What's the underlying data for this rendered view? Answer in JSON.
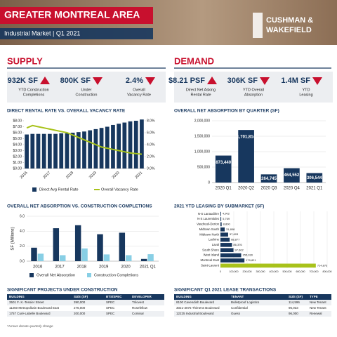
{
  "header": {
    "title": "GREATER MONTREAL AREA",
    "subtitle": "Industrial Market | Q1 2021",
    "logo": [
      "CUSHMAN &",
      "WAKEFIELD"
    ]
  },
  "supply": {
    "heading": "SUPPLY",
    "stats": [
      {
        "value": "932K SF",
        "label": [
          "YTD Construction",
          "Completions"
        ],
        "trend": "up"
      },
      {
        "value": "800K SF",
        "label": [
          "Under",
          "Construction"
        ],
        "trend": "down"
      },
      {
        "value": "2.4%",
        "label": [
          "Overall",
          "Vacancy Rate"
        ],
        "trend": "down"
      }
    ]
  },
  "demand": {
    "heading": "DEMAND",
    "stats": [
      {
        "value": "$8.21 PSF",
        "label": [
          "Direct Net Asking",
          "Rental Rate"
        ],
        "trend": "up"
      },
      {
        "value": "306K SF",
        "label": [
          "YTD Overall",
          "Absorption"
        ],
        "trend": "down"
      },
      {
        "value": "1.4M SF",
        "label": [
          "YTD",
          "Leasing"
        ],
        "trend": "down"
      }
    ]
  },
  "chart_data": [
    {
      "type": "combo",
      "title": "DIRECT RENTAL RATE VS. OVERALL VACANCY RATE",
      "categories": [
        "2016",
        null,
        null,
        null,
        "2017",
        null,
        null,
        null,
        "2018",
        null,
        null,
        null,
        "2019",
        null,
        null,
        null,
        "2020",
        null,
        null,
        null,
        "2021"
      ],
      "series": [
        {
          "name": "Direct Avg Rental Rate",
          "color": "#17375e",
          "type": "bar",
          "values": [
            5.7,
            5.8,
            5.8,
            5.8,
            5.8,
            5.8,
            5.9,
            5.9,
            6.0,
            6.1,
            6.2,
            6.4,
            6.6,
            6.8,
            7.0,
            7.3,
            7.5,
            7.7,
            7.9,
            8.0,
            8.21
          ]
        },
        {
          "name": "Overall Vacancy Rate",
          "color": "#a8c21a",
          "type": "line",
          "axis": "y2",
          "values": [
            6.8,
            7.2,
            7.0,
            6.8,
            6.6,
            6.4,
            6.2,
            6.0,
            5.6,
            5.2,
            4.8,
            4.4,
            4.0,
            3.6,
            3.4,
            3.2,
            3.0,
            2.8,
            2.6,
            2.5,
            2.4
          ]
        }
      ],
      "ylim": [
        0,
        8
      ],
      "yticks": [
        {
          "value": 0,
          "label": "$0.00"
        },
        {
          "value": 1,
          "label": "$1.00"
        },
        {
          "value": 2,
          "label": "$2.00"
        },
        {
          "value": 3,
          "label": "$3.00"
        },
        {
          "value": 4,
          "label": "$4.00"
        },
        {
          "value": 5,
          "label": "$5.00"
        },
        {
          "value": 6,
          "label": "$6.00"
        },
        {
          "value": 7,
          "label": "$7.00"
        },
        {
          "value": 8,
          "label": "$8.00"
        }
      ],
      "y2lim": [
        0,
        8
      ],
      "y2ticks": [
        {
          "value": 0,
          "label": "0.0%"
        },
        {
          "value": 2,
          "label": "2.0%"
        },
        {
          "value": 4,
          "label": "4.0%"
        },
        {
          "value": 6,
          "label": "6.0%"
        },
        {
          "value": 8,
          "label": "8.0%"
        }
      ]
    },
    {
      "type": "bar",
      "title": "OVERALL NET ABSORPTION BY QUARTER (SF)",
      "categories": [
        "2020 Q1",
        "2020 Q2",
        "2020 Q3",
        "2020 Q4",
        "2021 Q1"
      ],
      "values": [
        873440,
        1701814,
        264745,
        464552,
        306544
      ],
      "value_labels": [
        "873,440",
        "1,701,814",
        "264,745",
        "464,552",
        "306,544"
      ],
      "color": "#17375e",
      "grid": true,
      "ylim": [
        0,
        2000000
      ],
      "yticks": [
        0,
        {
          "value": 500000,
          "label": "500,000"
        },
        {
          "value": 1000000,
          "label": "1,000,000"
        },
        {
          "value": 1500000,
          "label": "1,500,000"
        },
        {
          "value": 2000000,
          "label": "2,000,000"
        }
      ]
    },
    {
      "type": "bar",
      "title": "OVERALL NET ABSORPTION VS. CONSTRUCTION COMPLETIONS",
      "ylabel": "SF (Millions)",
      "categories": [
        "2016",
        "2017",
        "2018",
        "2019",
        "2020",
        "2021 Q1"
      ],
      "series": [
        {
          "name": "Overall Net Absorption",
          "color": "#17375e",
          "values": [
            1.8,
            4.4,
            4.8,
            3.6,
            3.8,
            0.3
          ]
        },
        {
          "name": "Construction Completions",
          "color": "#88cfe5",
          "values": [
            1.0,
            0.8,
            1.7,
            0.9,
            0.8,
            0.93
          ]
        }
      ],
      "ylim": [
        0,
        6
      ],
      "yticks": [
        {
          "value": 0,
          "label": "0.0"
        },
        {
          "value": 2,
          "label": "2.0"
        },
        {
          "value": 4,
          "label": "4.0"
        },
        {
          "value": 6,
          "label": "6.0"
        }
      ],
      "grid": true
    },
    {
      "type": "barh",
      "title": "2021 YTD LEASING BY SUBMARKET (SF)",
      "categories": [
        "N-S Lanaudière",
        "N-S Laurentides",
        "Vaudreuil-Dorion",
        "Midtown South",
        "Midtown North",
        "Lachine",
        "Laval",
        "South Shore",
        "West Island",
        "Montreal East",
        "Saint-Laurent"
      ],
      "values": [
        4902,
        5769,
        8800,
        31808,
        57603,
        68877,
        86376,
        97602,
        155330,
        179821,
        714873
      ],
      "value_labels": [
        "4,902",
        "5,769",
        "8,800",
        "31,808",
        "57,603",
        "68,877",
        "86,376",
        "97,602",
        "155,330",
        "179,821",
        "714,873"
      ],
      "colors": [
        "#17375e",
        "#17375e",
        "#17375e",
        "#17375e",
        "#17375e",
        "#17375e",
        "#17375e",
        "#17375e",
        "#17375e",
        "#17375e",
        "#a8c21a"
      ],
      "xlim": [
        0,
        800000
      ],
      "xticks": [
        0,
        {
          "value": 100000,
          "label": "100,000"
        },
        {
          "value": 200000,
          "label": "200,000"
        },
        {
          "value": 300000,
          "label": "300,000"
        },
        {
          "value": 400000,
          "label": "400,000"
        },
        {
          "value": 500000,
          "label": "500,000"
        },
        {
          "value": 600000,
          "label": "600,000"
        },
        {
          "value": 700000,
          "label": "700,000"
        },
        {
          "value": 800000,
          "label": "800,000"
        }
      ],
      "grid": true
    }
  ],
  "projects": {
    "title": "SIGNIFICANT PROJECTS UNDER CONSTRUCTION",
    "columns": [
      "BUILDING",
      "SIZE (SF)",
      "BTS/SPEC",
      "DEVELOPER"
    ],
    "rows": [
      [
        "3501 F.-X.-Tessier Street",
        "390,000",
        "SPEC",
        "Trilovest"
      ],
      [
        "11250 Metropolitain Boulevard East",
        "276,000",
        "SPEC",
        "Rosefellow"
      ],
      [
        "1757 Curé-Labelle Boulevard",
        "200,000",
        "SPEC",
        "Cominar"
      ]
    ]
  },
  "leases": {
    "title": "SIGNIFICANT Q1 2021 LEASE TRANSACTIONS",
    "columns": [
      "BUILDING",
      "TENANT",
      "SIZE (SF)",
      "TYPE"
    ],
    "rows": [
      [
        "8100 Cavendish Boulevard",
        "Bulletproof Logistics",
        "114,596",
        "New Tenant"
      ],
      [
        "3021-3075 Thimens Boulevard",
        "Confidential",
        "96,033",
        "New Tenant"
      ],
      [
        "12225 Industrial Boulevard",
        "Guess",
        "96,000",
        "Renewal"
      ]
    ]
  },
  "footnote": "*Arrows denote quarterly change"
}
